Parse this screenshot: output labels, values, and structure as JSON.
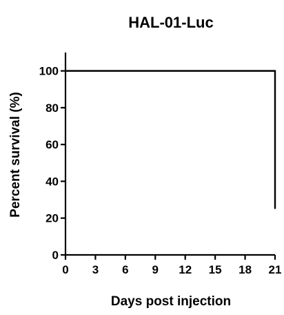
{
  "chart_data": {
    "type": "line",
    "step": true,
    "title": "HAL-01-Luc",
    "xlabel": "Days post injection",
    "ylabel": "Percent survival (%)",
    "xlim": [
      0,
      21
    ],
    "ylim": [
      0,
      110
    ],
    "xticks": [
      0,
      3,
      6,
      9,
      12,
      15,
      18,
      21
    ],
    "yticks": [
      0,
      20,
      40,
      60,
      80,
      100
    ],
    "grid": false,
    "series": [
      {
        "x": [
          0,
          21,
          21
        ],
        "y": [
          100,
          100,
          25
        ],
        "color": "#000000"
      }
    ]
  }
}
